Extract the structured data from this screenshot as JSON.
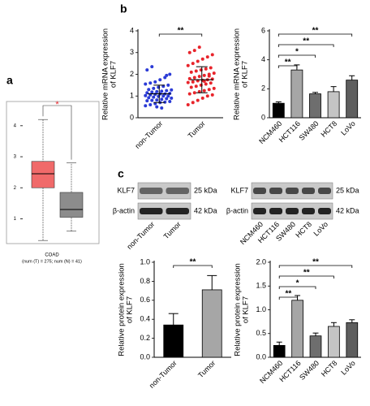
{
  "panel_labels": [
    "a",
    "b",
    "c"
  ],
  "chart_data": [
    {
      "type": "box",
      "title": "COAD",
      "subtitle": "(num (T) = 275; num (N) = 41)",
      "boxes": [
        {
          "color": "#f06a6a",
          "min": 0.3,
          "q1": 2.0,
          "median": 2.45,
          "q3": 2.85,
          "max": 4.2
        },
        {
          "color": "#8c8c8c",
          "min": 0.6,
          "q1": 1.05,
          "median": 1.3,
          "q3": 1.85,
          "max": 2.8
        }
      ],
      "annotation": "*",
      "ylim": [
        0.2,
        4.65
      ],
      "yticks": [
        1,
        2,
        3,
        4
      ]
    },
    {
      "type": "strip",
      "ylabel": [
        "Relative mRNA expression",
        "of KLF7"
      ],
      "categories": [
        "non-Tumor",
        "Tumor"
      ],
      "colors": [
        "#2b3bd6",
        "#e8242b"
      ],
      "values": [
        [
          0.55,
          0.6,
          0.65,
          0.7,
          0.72,
          0.75,
          0.78,
          0.8,
          0.82,
          0.85,
          0.88,
          0.9,
          0.92,
          0.95,
          0.98,
          1.0,
          1.0,
          1.02,
          1.05,
          1.08,
          1.1,
          1.1,
          1.12,
          1.15,
          1.18,
          1.2,
          1.22,
          1.25,
          1.28,
          1.3,
          1.35,
          1.4,
          1.45,
          1.5,
          1.55,
          1.6,
          1.65,
          1.75,
          1.85,
          2.0,
          2.2,
          2.35,
          0.5,
          0.45,
          1.95
        ],
        [
          0.6,
          0.7,
          0.8,
          0.9,
          1.0,
          1.05,
          1.1,
          1.15,
          1.2,
          1.25,
          1.3,
          1.35,
          1.4,
          1.45,
          1.5,
          1.55,
          1.6,
          1.62,
          1.65,
          1.7,
          1.72,
          1.75,
          1.78,
          1.8,
          1.85,
          1.9,
          1.95,
          2.0,
          2.05,
          2.1,
          2.15,
          2.2,
          2.25,
          2.3,
          2.4,
          2.5,
          2.6,
          2.7,
          2.8,
          2.9,
          3.0,
          3.1,
          3.25,
          1.68,
          1.92
        ]
      ],
      "means": [
        1.1,
        1.75
      ],
      "errors": [
        0.4,
        0.6
      ],
      "comparisons": [
        {
          "groups": [
            "non-Tumor",
            "Tumor"
          ],
          "label": "**"
        }
      ],
      "ylim": [
        0,
        4
      ],
      "yticks": [
        0,
        1,
        2,
        3,
        4
      ]
    },
    {
      "type": "bar",
      "ylabel": [
        "Relative mRNA expression",
        "of KLF7"
      ],
      "categories": [
        "NCM460",
        "HCT116",
        "SW480",
        "HCT8",
        "LoVo"
      ],
      "values": [
        1.0,
        3.3,
        1.65,
        1.8,
        2.6
      ],
      "errors": [
        0.1,
        0.35,
        0.1,
        0.35,
        0.3
      ],
      "colors": [
        "#000000",
        "#a6a6a6",
        "#6e6e6e",
        "#c4c4c4",
        "#5e5e5e"
      ],
      "comparisons": [
        {
          "groups": [
            "NCM460",
            "LoVo"
          ],
          "label": "**"
        },
        {
          "groups": [
            "NCM460",
            "HCT8"
          ],
          "label": "**"
        },
        {
          "groups": [
            "NCM460",
            "SW480"
          ],
          "label": "*"
        },
        {
          "groups": [
            "NCM460",
            "HCT116"
          ],
          "label": "**"
        }
      ],
      "ylim": [
        0,
        6
      ],
      "yticks": [
        0,
        2,
        4,
        6
      ]
    },
    {
      "type": "bar",
      "ylabel": [
        "Relative protein expression",
        "of KLF7"
      ],
      "categories": [
        "non-Tumor",
        "Tumor"
      ],
      "values": [
        0.34,
        0.71
      ],
      "errors": [
        0.12,
        0.15
      ],
      "colors": [
        "#000000",
        "#a6a6a6"
      ],
      "comparisons": [
        {
          "groups": [
            "non-Tumor",
            "Tumor"
          ],
          "label": "**"
        }
      ],
      "ylim": [
        0,
        1.0
      ],
      "yticks": [
        {
          "value": 0,
          "label": "0.0"
        },
        0.2,
        0.4,
        0.6,
        0.8,
        {
          "value": 1,
          "label": "1.0"
        }
      ]
    },
    {
      "type": "bar",
      "ylabel": [
        "Relative protein expression",
        "of KLF7"
      ],
      "categories": [
        "NCM460",
        "HCT116",
        "SW480",
        "HCT8",
        "LoVo"
      ],
      "values": [
        0.25,
        1.2,
        0.45,
        0.65,
        0.73
      ],
      "errors": [
        0.07,
        0.1,
        0.06,
        0.08,
        0.06
      ],
      "colors": [
        "#000000",
        "#a6a6a6",
        "#6e6e6e",
        "#c4c4c4",
        "#5e5e5e"
      ],
      "comparisons": [
        {
          "groups": [
            "NCM460",
            "LoVo"
          ],
          "label": "**"
        },
        {
          "groups": [
            "NCM460",
            "HCT8"
          ],
          "label": "**"
        },
        {
          "groups": [
            "NCM460",
            "SW480"
          ],
          "label": "*"
        },
        {
          "groups": [
            "NCM460",
            "HCT116"
          ],
          "label": "**"
        }
      ],
      "ylim": [
        0,
        2.0
      ],
      "yticks": [
        {
          "value": 0,
          "label": "0.0"
        },
        0.5,
        {
          "value": 1,
          "label": "1.0"
        },
        1.5,
        {
          "value": 2,
          "label": "2.0"
        }
      ]
    }
  ],
  "blots": [
    {
      "rows": [
        "KLF7",
        "β-actin"
      ],
      "sizes": [
        "25 kDa",
        "42 kDa"
      ],
      "lanes": [
        "non-Tumor",
        "Tumor"
      ]
    },
    {
      "rows": [
        "KLF7",
        "β-actin"
      ],
      "sizes": [
        "25 kDa",
        "42 kDa"
      ],
      "lanes": [
        "NCM460",
        "HCT116",
        "SW480",
        "HCT8",
        "LoVo"
      ]
    }
  ]
}
